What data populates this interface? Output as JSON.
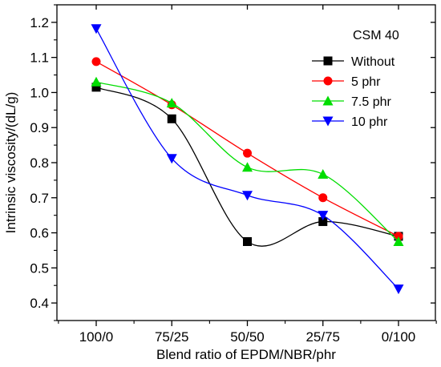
{
  "chart_data": {
    "type": "line",
    "title": "",
    "xlabel": "Blend ratio of EPDM/NBR/phr",
    "ylabel": "Intrinsic viscosity/(dL/g)",
    "categories": [
      "100/0",
      "75/25",
      "50/50",
      "25/75",
      "0/100"
    ],
    "ylim": [
      0.35,
      1.25
    ],
    "yticks": [
      "0.4",
      "0.5",
      "0.6",
      "0.7",
      "0.8",
      "0.9",
      "1.0",
      "1.1",
      "1.2"
    ],
    "grid": false,
    "legend_title": "CSM 40",
    "legend_position": "top-right",
    "series": [
      {
        "name": "Without",
        "color": "#000000",
        "marker": "square",
        "values": [
          1.015,
          0.925,
          0.575,
          0.632,
          0.59
        ]
      },
      {
        "name": "5 phr",
        "color": "#ff0000",
        "marker": "circle",
        "values": [
          1.088,
          0.965,
          0.827,
          0.7,
          0.59
        ]
      },
      {
        "name": "7.5 phr",
        "color": "#00dd00",
        "marker": "triangle-up",
        "values": [
          1.03,
          0.97,
          0.787,
          0.767,
          0.575
        ]
      },
      {
        "name": "10 phr",
        "color": "#0000ff",
        "marker": "triangle-down",
        "values": [
          1.182,
          0.812,
          0.707,
          0.65,
          0.44
        ]
      }
    ]
  }
}
